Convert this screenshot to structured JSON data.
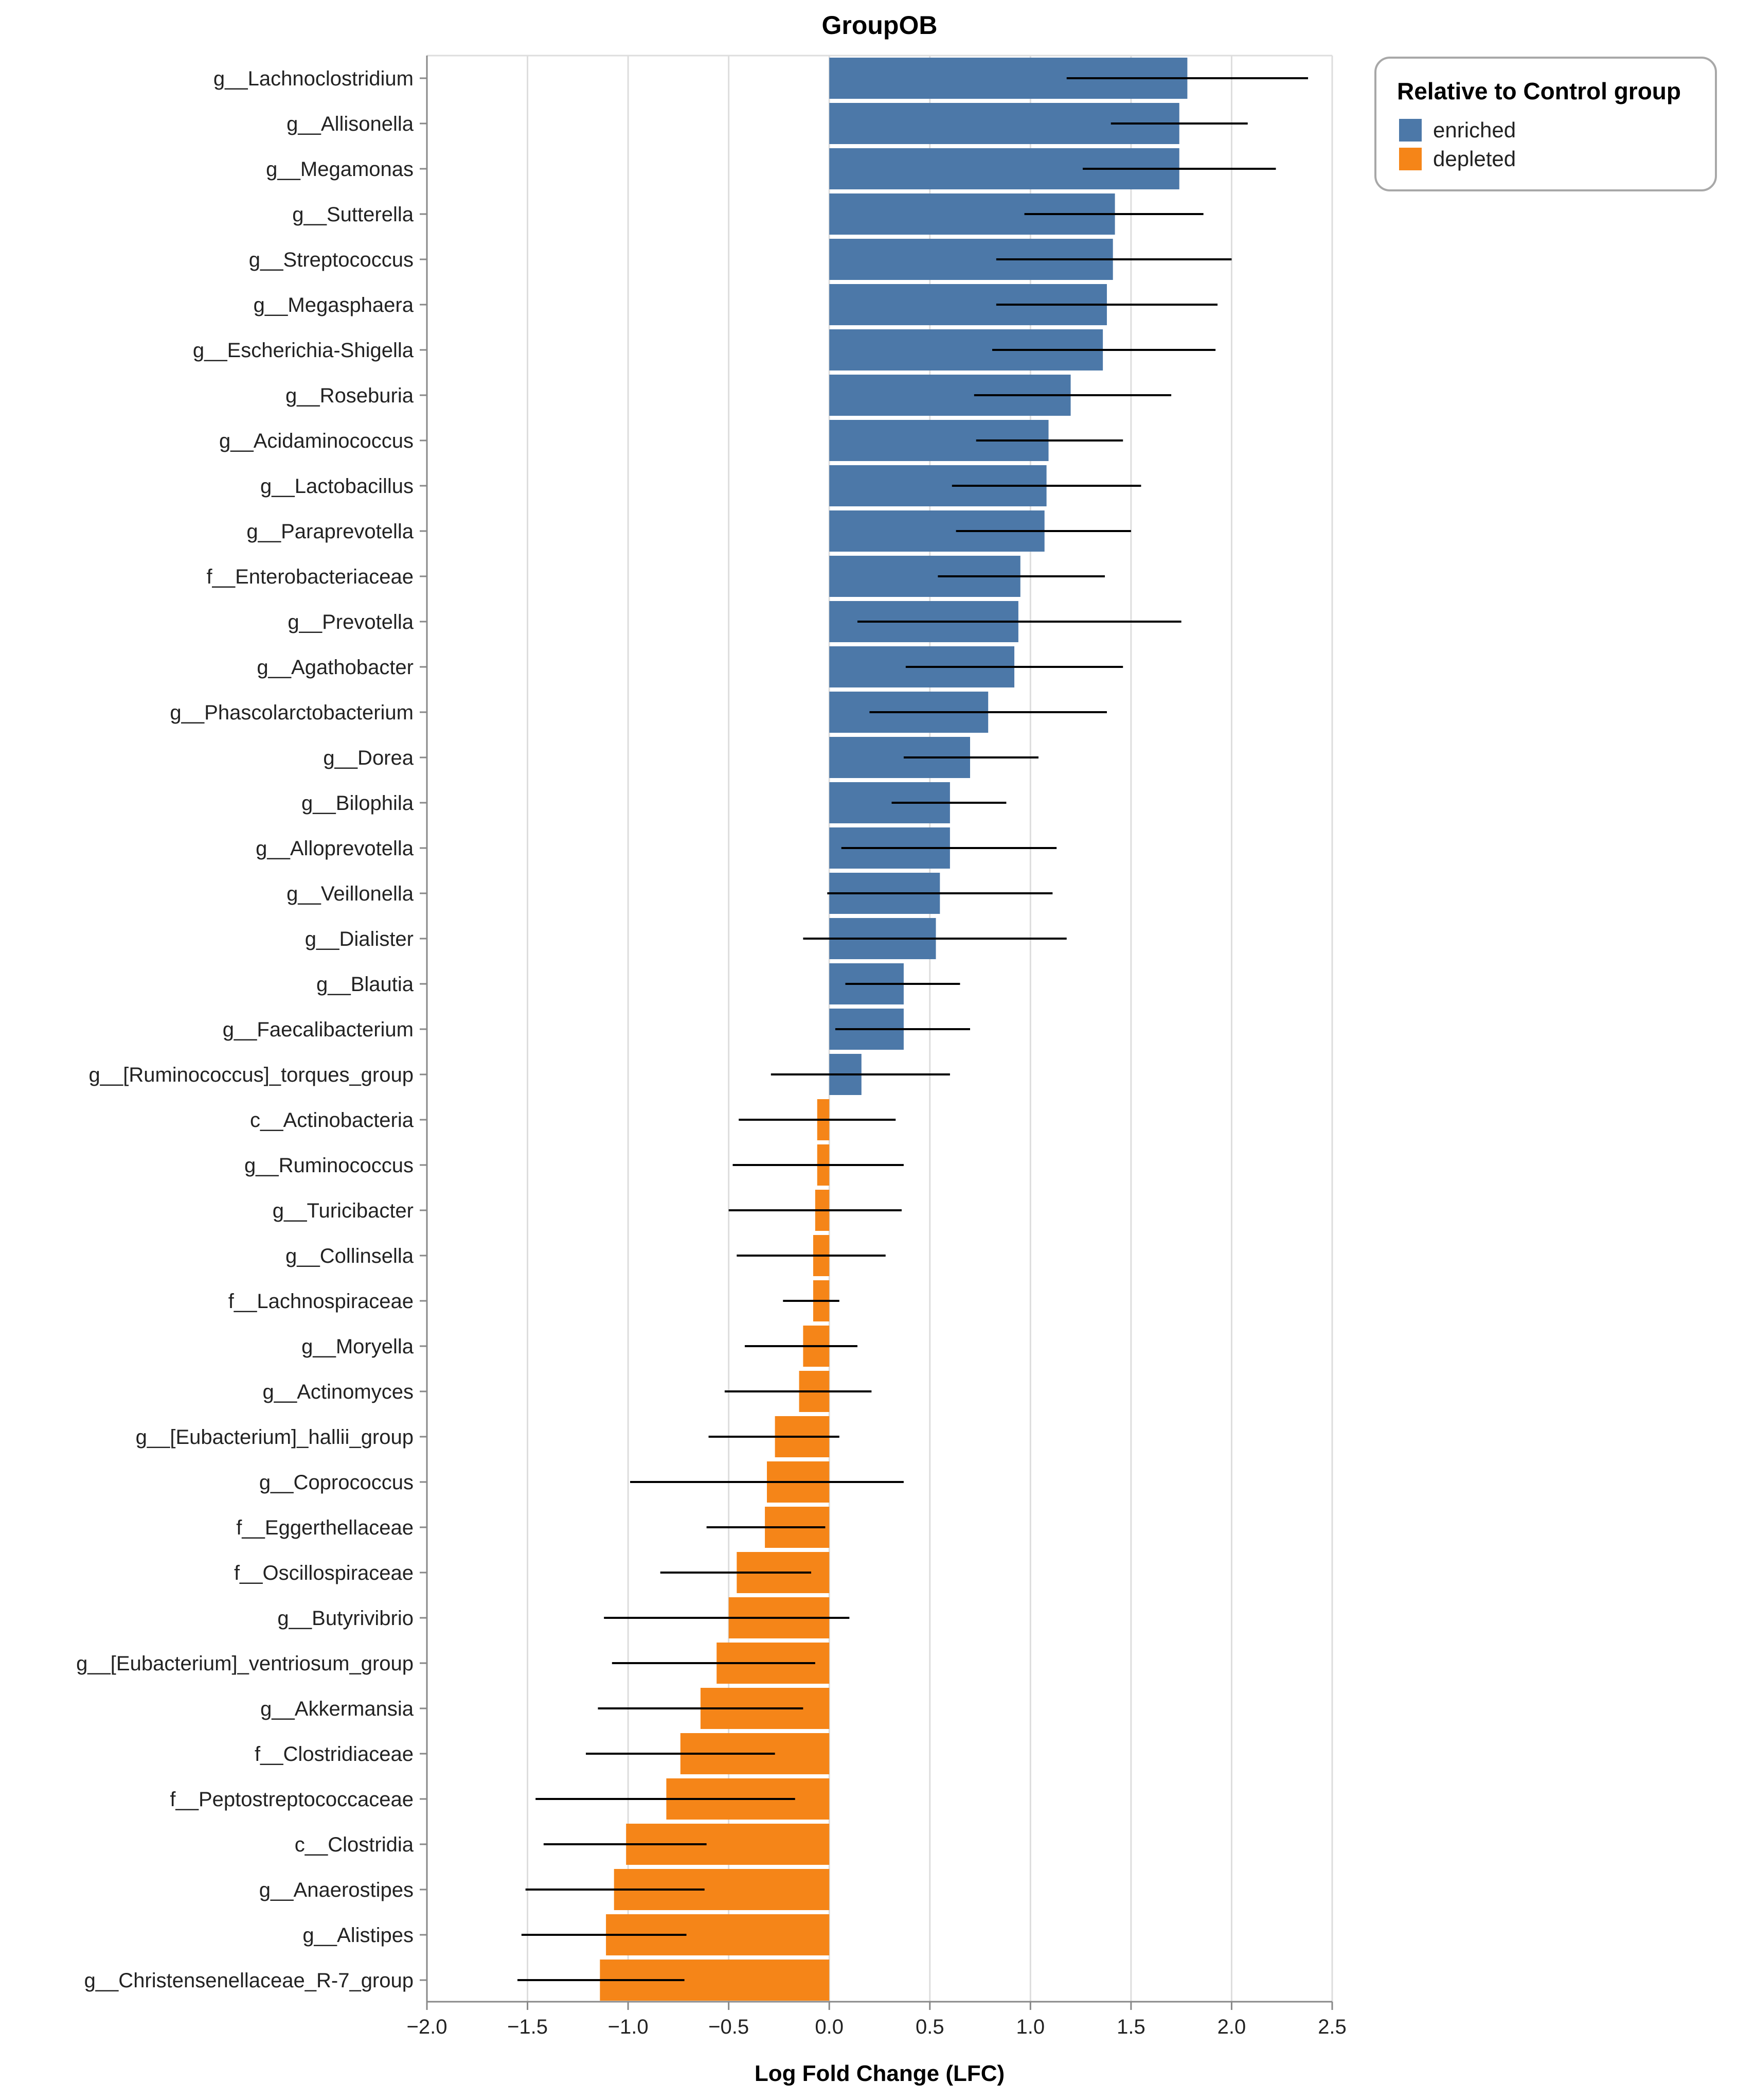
{
  "chart_data": {
    "type": "bar",
    "orientation": "horizontal",
    "title": "GroupOB",
    "xlabel": "Log Fold Change (LFC)",
    "ylabel": "",
    "xlim": [
      -2.0,
      2.5
    ],
    "x_ticks": [
      "−2.0",
      "−1.5",
      "−1.0",
      "−0.5",
      "0.0",
      "0.5",
      "1.0",
      "1.5",
      "2.0",
      "2.5"
    ],
    "x_tick_values": [
      -2.0,
      -1.5,
      -1.0,
      -0.5,
      0.0,
      0.5,
      1.0,
      1.5,
      2.0,
      2.5
    ],
    "grid": "vertical",
    "legend": {
      "title": "Relative to Control group",
      "position": "top-right",
      "entries": [
        {
          "label": "enriched",
          "color": "#4c78a8"
        },
        {
          "label": "depleted",
          "color": "#f58518"
        }
      ]
    },
    "categories": [
      "g__Lachnoclostridium",
      "g__Allisonella",
      "g__Megamonas",
      "g__Sutterella",
      "g__Streptococcus",
      "g__Megasphaera",
      "g__Escherichia-Shigella",
      "g__Roseburia",
      "g__Acidaminococcus",
      "g__Lactobacillus",
      "g__Paraprevotella",
      "f__Enterobacteriaceae",
      "g__Prevotella",
      "g__Agathobacter",
      "g__Phascolarctobacterium",
      "g__Dorea",
      "g__Bilophila",
      "g__Alloprevotella",
      "g__Veillonella",
      "g__Dialister",
      "g__Blautia",
      "g__Faecalibacterium",
      "g__[Ruminococcus]_torques_group",
      "c__Actinobacteria",
      "g__Ruminococcus",
      "g__Turicibacter",
      "g__Collinsella",
      "f__Lachnospiraceae",
      "g__Moryella",
      "g__Actinomyces",
      "g__[Eubacterium]_hallii_group",
      "g__Coprococcus",
      "f__Eggerthellaceae",
      "f__Oscillospiraceae",
      "g__Butyrivibrio",
      "g__[Eubacterium]_ventriosum_group",
      "g__Akkermansia",
      "f__Clostridiaceae",
      "f__Peptostreptococcaceae",
      "c__Clostridia",
      "g__Anaerostipes",
      "g__Alistipes",
      "g__Christensenellaceae_R-7_group"
    ],
    "values": [
      1.78,
      1.74,
      1.74,
      1.42,
      1.41,
      1.38,
      1.36,
      1.2,
      1.09,
      1.08,
      1.07,
      0.95,
      0.94,
      0.92,
      0.79,
      0.7,
      0.6,
      0.6,
      0.55,
      0.53,
      0.37,
      0.37,
      0.16,
      -0.06,
      -0.06,
      -0.07,
      -0.08,
      -0.08,
      -0.13,
      -0.15,
      -0.27,
      -0.31,
      -0.32,
      -0.46,
      -0.5,
      -0.56,
      -0.64,
      -0.74,
      -0.81,
      -1.01,
      -1.07,
      -1.11,
      -1.14
    ],
    "error_low": [
      1.18,
      1.4,
      1.26,
      0.97,
      0.83,
      0.83,
      0.81,
      0.72,
      0.73,
      0.61,
      0.63,
      0.54,
      0.14,
      0.38,
      0.2,
      0.37,
      0.31,
      0.06,
      -0.01,
      -0.13,
      0.08,
      0.03,
      -0.29,
      -0.45,
      -0.48,
      -0.5,
      -0.46,
      -0.23,
      -0.42,
      -0.52,
      -0.6,
      -0.99,
      -0.61,
      -0.84,
      -1.12,
      -1.08,
      -1.15,
      -1.21,
      -1.46,
      -1.42,
      -1.51,
      -1.53,
      -1.55
    ],
    "error_high": [
      2.38,
      2.08,
      2.22,
      1.86,
      2.0,
      1.93,
      1.92,
      1.7,
      1.46,
      1.55,
      1.5,
      1.37,
      1.75,
      1.46,
      1.38,
      1.04,
      0.88,
      1.13,
      1.11,
      1.18,
      0.65,
      0.7,
      0.6,
      0.33,
      0.37,
      0.36,
      0.28,
      0.05,
      0.14,
      0.21,
      0.05,
      0.37,
      -0.02,
      -0.09,
      0.1,
      -0.07,
      -0.13,
      -0.27,
      -0.17,
      -0.61,
      -0.62,
      -0.71,
      -0.72
    ],
    "groups": [
      "enriched",
      "enriched",
      "enriched",
      "enriched",
      "enriched",
      "enriched",
      "enriched",
      "enriched",
      "enriched",
      "enriched",
      "enriched",
      "enriched",
      "enriched",
      "enriched",
      "enriched",
      "enriched",
      "enriched",
      "enriched",
      "enriched",
      "enriched",
      "enriched",
      "enriched",
      "enriched",
      "depleted",
      "depleted",
      "depleted",
      "depleted",
      "depleted",
      "depleted",
      "depleted",
      "depleted",
      "depleted",
      "depleted",
      "depleted",
      "depleted",
      "depleted",
      "depleted",
      "depleted",
      "depleted",
      "depleted",
      "depleted",
      "depleted",
      "depleted"
    ]
  },
  "colors": {
    "enriched": "#4c78a8",
    "depleted": "#f58518",
    "grid": "#dddddd",
    "axis": "#888888",
    "error_bar": "#000000"
  }
}
